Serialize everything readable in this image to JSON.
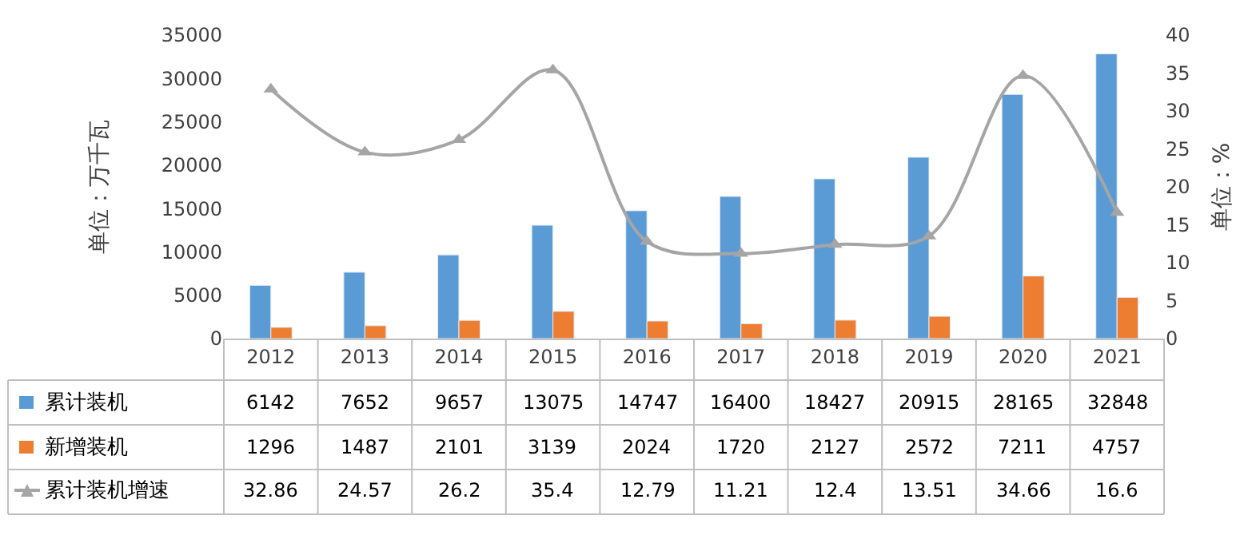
{
  "chart_data": {
    "type": "bar",
    "categories": [
      "2012",
      "2013",
      "2014",
      "2015",
      "2016",
      "2017",
      "2018",
      "2019",
      "2020",
      "2021"
    ],
    "series": [
      {
        "name": "累计装机",
        "color": "#5b9bd5",
        "values": [
          6142,
          7652,
          9657,
          13075,
          14747,
          16400,
          18427,
          20915,
          28165,
          32848
        ]
      },
      {
        "name": "新增装机",
        "color": "#ed7d31",
        "values": [
          1296,
          1487,
          2101,
          3139,
          2024,
          1720,
          2127,
          2572,
          7211,
          4757
        ]
      },
      {
        "name": "累计装机增速",
        "color": "#a5a5a5",
        "type": "line",
        "axis": "y2",
        "marker": "triangle",
        "values": [
          32.86,
          24.57,
          26.2,
          35.4,
          12.79,
          11.21,
          12.4,
          13.51,
          34.66,
          16.6
        ]
      }
    ],
    "ylabel": "单位：万千瓦",
    "y2label": "单位：%",
    "ylim": [
      0,
      35000
    ],
    "yticks": [
      0,
      5000,
      10000,
      15000,
      20000,
      25000,
      30000,
      35000
    ],
    "y2lim": [
      0,
      40
    ],
    "y2ticks": [
      0,
      5,
      10,
      15,
      20,
      25,
      30,
      35,
      40
    ],
    "data_labels": true,
    "legend": "bottom"
  }
}
